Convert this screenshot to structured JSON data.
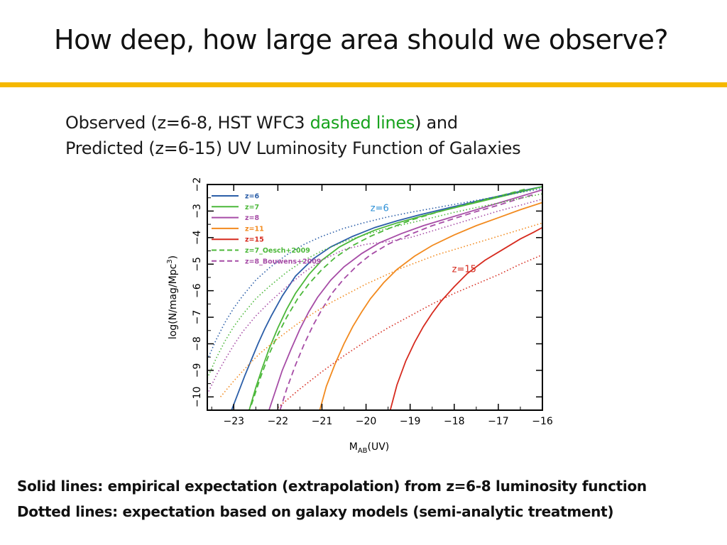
{
  "slide": {
    "title": "How deep, how large area should we observe?",
    "rule_color": "#f5b800",
    "subtitle_line1_a": "Observed (z=6-8, HST WFC3 ",
    "subtitle_line1_highlight": "dashed lines",
    "subtitle_line1_b": ") and",
    "subtitle_line2": "Predicted  (z=6-15) UV Luminosity Function of Galaxies",
    "highlight_color": "#17a31d",
    "note1": "Solid lines: empirical expectation (extrapolation) from z=6-8 luminosity function",
    "note2": "Dotted lines: expectation based on galaxy models (semi-analytic treatment)"
  },
  "chart_data": {
    "type": "line",
    "xlabel_main": "M",
    "xlabel_sub": "AB",
    "xlabel_tail": "(UV)",
    "ylabel_main": "log(N/mag/Mpc",
    "ylabel_sup": "3",
    "ylabel_tail": ")",
    "xlim": [
      -23.6,
      -16
    ],
    "ylim": [
      -10.5,
      -2
    ],
    "xticks": [
      -23,
      -22,
      -21,
      -20,
      -19,
      -18,
      -17,
      -16
    ],
    "xtick_labels": [
      "−23",
      "−22",
      "−21",
      "−20",
      "−19",
      "−18",
      "−17",
      "−16"
    ],
    "yticks": [
      -2,
      -3,
      -4,
      -5,
      -6,
      -7,
      -8,
      -9,
      -10
    ],
    "ytick_labels": [
      "−2",
      "−3",
      "−4",
      "−5",
      "−6",
      "−7",
      "−8",
      "−9",
      "−10"
    ],
    "legend_position": "top-left",
    "legend": [
      {
        "label": "z=6",
        "color": "#2b5ea8",
        "style": "solid"
      },
      {
        "label": "z=7",
        "color": "#4cb83a",
        "style": "solid"
      },
      {
        "label": "z=8",
        "color": "#a64ca6",
        "style": "solid"
      },
      {
        "label": "z=11",
        "color": "#f28a1e",
        "style": "solid"
      },
      {
        "label": "z=15",
        "color": "#d62a1e",
        "style": "solid"
      },
      {
        "label": "z=7_Oesch+2009",
        "color": "#4cb83a",
        "style": "dashed"
      },
      {
        "label": "z=8_Bouwens+2009",
        "color": "#a64ca6",
        "style": "dashed"
      }
    ],
    "annotations": [
      {
        "text": "z=6",
        "x": -19.9,
        "y": -3.0,
        "color": "#2b8fd6"
      },
      {
        "text": "z=15",
        "x": -18.05,
        "y": -5.3,
        "color": "#d62a1e"
      }
    ],
    "series": [
      {
        "name": "z=6",
        "style": "solid",
        "color": "#2b5ea8",
        "x": [
          -23.05,
          -22.9,
          -22.75,
          -22.6,
          -22.45,
          -22.3,
          -22.15,
          -21.9,
          -21.6,
          -21.2,
          -20.8,
          -20.3,
          -19.8,
          -19.3,
          -18.8,
          -18.3,
          -17.8,
          -17.3,
          -16.8,
          -16.3,
          -16.0
        ],
        "y": [
          -10.5,
          -9.85,
          -9.2,
          -8.6,
          -8.0,
          -7.45,
          -6.95,
          -6.2,
          -5.45,
          -4.8,
          -4.35,
          -3.95,
          -3.62,
          -3.37,
          -3.15,
          -2.95,
          -2.75,
          -2.55,
          -2.37,
          -2.18,
          -2.08
        ]
      },
      {
        "name": "z=7",
        "style": "solid",
        "color": "#4cb83a",
        "x": [
          -22.65,
          -22.5,
          -22.35,
          -22.2,
          -22.0,
          -21.8,
          -21.6,
          -21.3,
          -21.0,
          -20.6,
          -20.2,
          -19.8,
          -19.3,
          -18.8,
          -18.3,
          -17.8,
          -17.3,
          -16.8,
          -16.3,
          -16.0
        ],
        "y": [
          -10.5,
          -9.65,
          -8.9,
          -8.2,
          -7.4,
          -6.7,
          -6.1,
          -5.4,
          -4.85,
          -4.35,
          -4.0,
          -3.72,
          -3.45,
          -3.22,
          -3.0,
          -2.8,
          -2.6,
          -2.4,
          -2.2,
          -2.08
        ]
      },
      {
        "name": "z=8",
        "style": "solid",
        "color": "#a64ca6",
        "x": [
          -22.2,
          -22.05,
          -21.9,
          -21.7,
          -21.5,
          -21.3,
          -21.1,
          -20.8,
          -20.5,
          -20.1,
          -19.7,
          -19.2,
          -18.7,
          -18.2,
          -17.7,
          -17.2,
          -16.7,
          -16.2,
          -16.0
        ],
        "y": [
          -10.5,
          -9.75,
          -9.0,
          -8.2,
          -7.45,
          -6.8,
          -6.25,
          -5.6,
          -5.1,
          -4.6,
          -4.2,
          -3.85,
          -3.55,
          -3.3,
          -3.05,
          -2.8,
          -2.55,
          -2.3,
          -2.2
        ]
      },
      {
        "name": "z=11",
        "style": "solid",
        "color": "#f28a1e",
        "x": [
          -21.05,
          -20.9,
          -20.7,
          -20.5,
          -20.3,
          -20.1,
          -19.9,
          -19.6,
          -19.3,
          -18.9,
          -18.5,
          -18.0,
          -17.5,
          -17.0,
          -16.5,
          -16.0
        ],
        "y": [
          -10.5,
          -9.6,
          -8.75,
          -8.0,
          -7.35,
          -6.8,
          -6.3,
          -5.7,
          -5.2,
          -4.7,
          -4.3,
          -3.9,
          -3.55,
          -3.25,
          -2.95,
          -2.68
        ]
      },
      {
        "name": "z=15",
        "style": "solid",
        "color": "#d62a1e",
        "x": [
          -19.45,
          -19.3,
          -19.1,
          -18.9,
          -18.7,
          -18.5,
          -18.3,
          -18.0,
          -17.7,
          -17.3,
          -16.9,
          -16.5,
          -16.2,
          -16.0
        ],
        "y": [
          -10.5,
          -9.55,
          -8.65,
          -7.95,
          -7.35,
          -6.85,
          -6.4,
          -5.85,
          -5.35,
          -4.85,
          -4.45,
          -4.05,
          -3.8,
          -3.62
        ]
      },
      {
        "name": "z=7_Oesch+2009",
        "style": "dashed",
        "color": "#4cb83a",
        "x": [
          -22.6,
          -22.4,
          -22.2,
          -22.0,
          -21.8,
          -21.55,
          -21.3,
          -21.0,
          -20.7,
          -20.3,
          -19.9,
          -19.4,
          -18.9,
          -18.4,
          -17.9,
          -17.4,
          -16.9,
          -16.4
        ],
        "y": [
          -10.3,
          -9.3,
          -8.4,
          -7.65,
          -7.0,
          -6.3,
          -5.75,
          -5.2,
          -4.75,
          -4.3,
          -3.95,
          -3.6,
          -3.3,
          -3.05,
          -2.82,
          -2.6,
          -2.4,
          -2.18
        ]
      },
      {
        "name": "z=8_Bouwens+2009",
        "style": "dashed",
        "color": "#a64ca6",
        "x": [
          -21.95,
          -21.8,
          -21.6,
          -21.4,
          -21.2,
          -21.0,
          -20.75,
          -20.5,
          -20.2,
          -19.9,
          -19.5,
          -19.0,
          -18.5,
          -18.0,
          -17.5,
          -17.0,
          -16.5,
          -16.2
        ],
        "y": [
          -10.5,
          -9.7,
          -8.8,
          -8.0,
          -7.3,
          -6.7,
          -6.05,
          -5.55,
          -5.05,
          -4.65,
          -4.25,
          -3.88,
          -3.55,
          -3.28,
          -3.02,
          -2.78,
          -2.52,
          -2.38
        ]
      },
      {
        "name": "z=6 model",
        "style": "dotted",
        "color": "#2b5ea8",
        "x": [
          -23.6,
          -23.4,
          -23.2,
          -23.0,
          -22.8,
          -22.5,
          -22.2,
          -21.8,
          -21.4,
          -21.0,
          -20.5,
          -20.0,
          -19.5,
          -19.0,
          -18.5,
          -18.0,
          -17.5,
          -17.0,
          -16.5,
          -16.0
        ],
        "y": [
          -8.6,
          -7.85,
          -7.2,
          -6.65,
          -6.2,
          -5.6,
          -5.15,
          -4.65,
          -4.25,
          -3.95,
          -3.65,
          -3.42,
          -3.22,
          -3.05,
          -2.9,
          -2.75,
          -2.6,
          -2.45,
          -2.3,
          -2.15
        ]
      },
      {
        "name": "z=7 model",
        "style": "dotted",
        "color": "#4cb83a",
        "x": [
          -23.6,
          -23.4,
          -23.2,
          -23.0,
          -22.8,
          -22.5,
          -22.2,
          -21.8,
          -21.4,
          -21.0,
          -20.5,
          -20.0,
          -19.5,
          -19.0,
          -18.5,
          -18.0,
          -17.5,
          -17.0,
          -16.5,
          -16.0
        ],
        "y": [
          -9.3,
          -8.55,
          -7.9,
          -7.35,
          -6.9,
          -6.3,
          -5.85,
          -5.3,
          -4.85,
          -4.5,
          -4.15,
          -3.88,
          -3.65,
          -3.45,
          -3.25,
          -3.05,
          -2.87,
          -2.7,
          -2.52,
          -2.35
        ]
      },
      {
        "name": "z=8 model",
        "style": "dotted",
        "color": "#a64ca6",
        "x": [
          -23.6,
          -23.4,
          -23.2,
          -23.0,
          -22.8,
          -22.5,
          -22.2,
          -21.8,
          -21.4,
          -21.0,
          -20.5,
          -20.0,
          -19.5,
          -19.0,
          -18.5,
          -18.0,
          -17.5,
          -17.0,
          -16.5,
          -16.0
        ],
        "y": [
          -9.9,
          -9.2,
          -8.6,
          -8.05,
          -7.55,
          -6.95,
          -6.45,
          -5.85,
          -5.3,
          -4.85,
          -4.45,
          -4.25,
          -4.15,
          -4.0,
          -3.75,
          -3.5,
          -3.25,
          -3.0,
          -2.78,
          -2.55
        ]
      },
      {
        "name": "z=11 model",
        "style": "dotted",
        "color": "#f28a1e",
        "x": [
          -23.3,
          -23.0,
          -22.7,
          -22.4,
          -22.0,
          -21.6,
          -21.2,
          -20.8,
          -20.4,
          -20.0,
          -19.6,
          -19.2,
          -18.8,
          -18.4,
          -18.0,
          -17.6,
          -17.2,
          -16.8,
          -16.4,
          -16.0
        ],
        "y": [
          -10.0,
          -9.4,
          -8.85,
          -8.35,
          -7.8,
          -7.3,
          -6.85,
          -6.45,
          -6.1,
          -5.75,
          -5.45,
          -5.15,
          -4.9,
          -4.65,
          -4.45,
          -4.25,
          -4.05,
          -3.85,
          -3.65,
          -3.45
        ]
      },
      {
        "name": "z=15 model",
        "style": "dotted",
        "color": "#d62a1e",
        "x": [
          -22.0,
          -21.5,
          -21.0,
          -20.5,
          -20.0,
          -19.5,
          -19.0,
          -18.5,
          -18.0,
          -17.5,
          -17.0,
          -16.5,
          -16.0
        ],
        "y": [
          -10.4,
          -9.7,
          -9.05,
          -8.45,
          -7.9,
          -7.4,
          -6.95,
          -6.5,
          -6.1,
          -5.75,
          -5.4,
          -5.0,
          -4.65
        ]
      }
    ]
  }
}
